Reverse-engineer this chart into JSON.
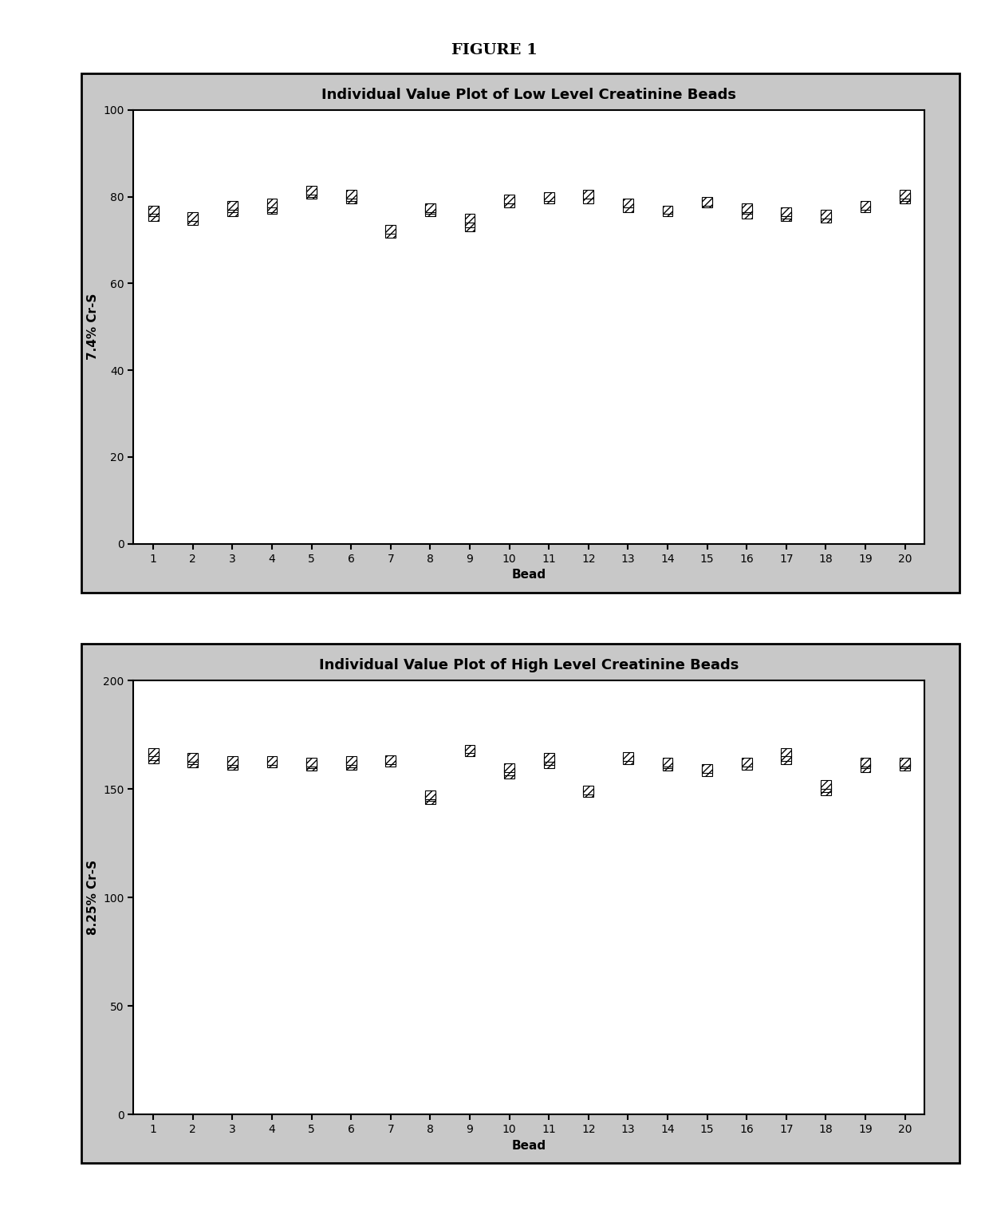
{
  "figure_title": "FIGURE 1",
  "plot1": {
    "title": "Individual Value Plot of Low Level Creatinine Beads",
    "xlabel": "Bead",
    "ylabel": "7.4% Cr-S",
    "ylim": [
      0,
      100
    ],
    "yticks": [
      0,
      20,
      40,
      60,
      80,
      100
    ],
    "xlim": [
      0.5,
      20.5
    ],
    "xticks": [
      1,
      2,
      3,
      4,
      5,
      6,
      7,
      8,
      9,
      10,
      11,
      12,
      13,
      14,
      15,
      16,
      17,
      18,
      19,
      20
    ],
    "data": {
      "1": [
        75.5,
        76.5,
        77.0
      ],
      "2": [
        74.5,
        75.5
      ],
      "3": [
        76.5,
        77.5,
        78.0
      ],
      "4": [
        77.0,
        77.5,
        78.5
      ],
      "5": [
        80.5,
        81.0,
        81.5
      ],
      "6": [
        79.5,
        80.0,
        80.5
      ],
      "7": [
        71.5,
        72.5
      ],
      "8": [
        76.5,
        77.0,
        77.5
      ],
      "9": [
        73.0,
        74.0,
        75.0
      ],
      "10": [
        78.5,
        79.5
      ],
      "11": [
        79.5,
        80.0
      ],
      "12": [
        79.5,
        80.5
      ],
      "13": [
        77.5,
        78.5
      ],
      "14": [
        76.5,
        77.0
      ],
      "15": [
        78.5,
        79.0
      ],
      "16": [
        76.0,
        77.0,
        77.5
      ],
      "17": [
        75.5,
        76.0,
        76.5
      ],
      "18": [
        75.0,
        76.0
      ],
      "19": [
        77.5,
        78.0
      ],
      "20": [
        79.5,
        80.0,
        80.5
      ]
    }
  },
  "plot2": {
    "title": "Individual Value Plot of High Level Creatinine Beads",
    "xlabel": "Bead",
    "ylabel": "8.25% Cr-S",
    "ylim": [
      0,
      200
    ],
    "yticks": [
      0,
      50,
      100,
      150,
      200
    ],
    "xlim": [
      0.5,
      20.5
    ],
    "xticks": [
      1,
      2,
      3,
      4,
      5,
      6,
      7,
      8,
      9,
      10,
      11,
      12,
      13,
      14,
      15,
      16,
      17,
      18,
      19,
      20
    ],
    "data": {
      "1": [
        164.0,
        165.5,
        167.0
      ],
      "2": [
        162.0,
        163.5,
        164.5
      ],
      "3": [
        161.0,
        162.0,
        163.0
      ],
      "4": [
        162.0,
        163.0
      ],
      "5": [
        160.5,
        161.5,
        162.5
      ],
      "6": [
        161.0,
        162.0,
        163.0
      ],
      "7": [
        162.5,
        163.5
      ],
      "8": [
        145.0,
        146.5,
        147.5
      ],
      "9": [
        167.0,
        168.5
      ],
      "10": [
        157.0,
        158.5,
        160.0
      ],
      "11": [
        161.5,
        163.0,
        164.5
      ],
      "12": [
        148.5,
        149.5
      ],
      "13": [
        163.5,
        165.0
      ],
      "14": [
        160.5,
        161.5,
        162.5
      ],
      "15": [
        158.0,
        159.5
      ],
      "16": [
        161.0,
        162.5
      ],
      "17": [
        163.5,
        165.0,
        167.0
      ],
      "18": [
        149.0,
        150.5,
        152.0
      ],
      "19": [
        160.0,
        161.5,
        162.5
      ],
      "20": [
        160.5,
        161.5,
        162.5
      ]
    }
  },
  "panel_bg_color": "#c8c8c8",
  "plot_bg_color": "#ffffff",
  "title_fontsize": 13,
  "label_fontsize": 11,
  "tick_fontsize": 10,
  "fig_title_fontsize": 14
}
